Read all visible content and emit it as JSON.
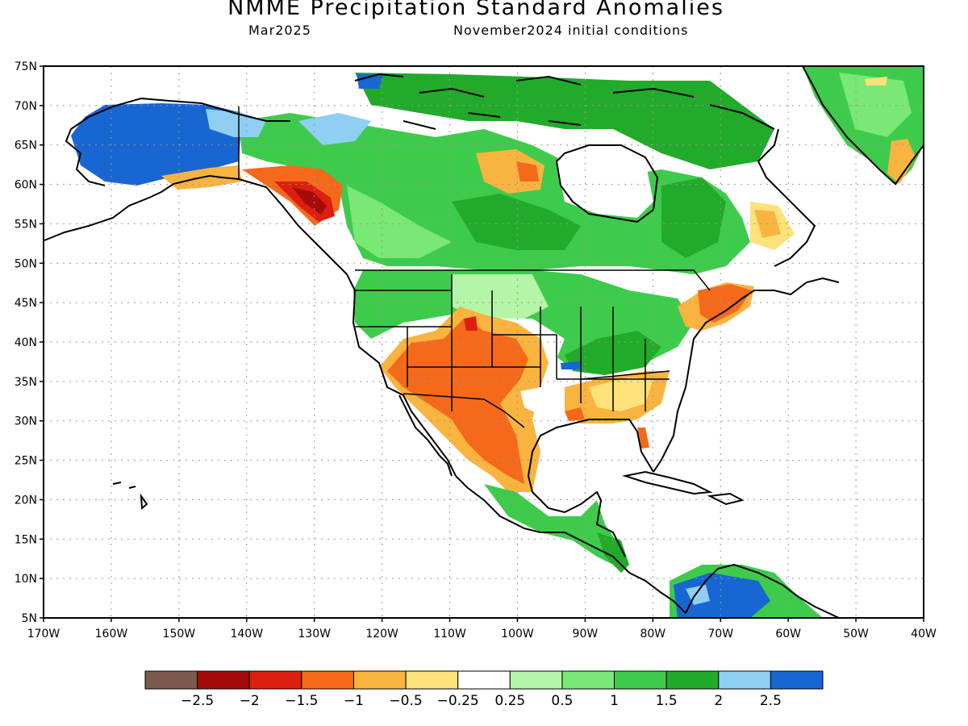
{
  "title": "NMME Precipitation Standard Anomalies",
  "subtitle_left": "Mar2025",
  "subtitle_right": "November2024 initial conditions",
  "lat_labels": [
    "75N",
    "70N",
    "65N",
    "60N",
    "55N",
    "50N",
    "45N",
    "40N",
    "35N",
    "30N",
    "25N",
    "20N",
    "15N",
    "10N",
    "5N"
  ],
  "lon_labels": [
    "170W",
    "160W",
    "150W",
    "140W",
    "130W",
    "120W",
    "110W",
    "100W",
    "90W",
    "80W",
    "70W",
    "60W",
    "50W",
    "40W"
  ],
  "colorbar": {
    "colors": [
      "#7f5a4f",
      "#a50b0b",
      "#dd1f10",
      "#f5691a",
      "#f9b33f",
      "#fde27a",
      "#ffffff",
      "#b5f5a8",
      "#79e874",
      "#3ecb4b",
      "#22aa2a",
      "#8fcff3",
      "#1766d2"
    ],
    "labels": [
      "−2.5",
      "−2",
      "−1.5",
      "−1",
      "−0.5",
      "−0.25",
      "0.25",
      "0.5",
      "1",
      "1.5",
      "2",
      "2.5"
    ]
  },
  "anomaly_regions": [
    {
      "region": "Alaska",
      "level": 2.5
    },
    {
      "region": "Southern Alaska coast / Yukon",
      "level": -1
    },
    {
      "region": "British Columbia coast",
      "level": -2
    },
    {
      "region": "Western & central Canada",
      "level": 1.5
    },
    {
      "region": "Canadian Arctic Archipelago",
      "level": 2
    },
    {
      "region": "Northern Quebec / Labrador",
      "level": 2
    },
    {
      "region": "Hudson Bay west coast",
      "level": -1
    },
    {
      "region": "Pacific Northwest US",
      "level": 0.5
    },
    {
      "region": "Southwest US",
      "level": -1.5
    },
    {
      "region": "Southern Plains",
      "level": -1
    },
    {
      "region": "Northern Mexico",
      "level": -1
    },
    {
      "region": "Ohio Valley / Mid-Mississippi",
      "level": 1.5
    },
    {
      "region": "Southeast US",
      "level": -0.5
    },
    {
      "region": "New England",
      "level": -1.5
    },
    {
      "region": "Central America",
      "level": 1
    },
    {
      "region": "Northern South America",
      "level": 2.5
    },
    {
      "region": "Greenland",
      "level": 1
    }
  ]
}
